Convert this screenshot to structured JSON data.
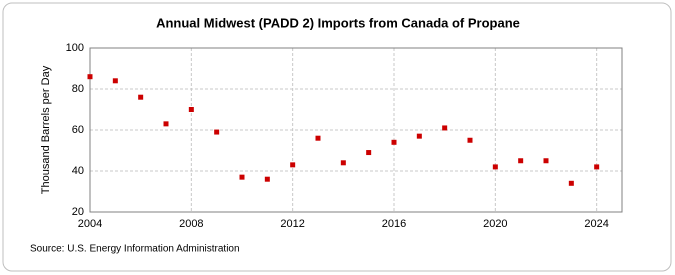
{
  "chart_data": {
    "type": "scatter",
    "title": "Annual Midwest (PADD 2) Imports from Canada of Propane",
    "y_label": "Thousand Barrels per Day",
    "source": "Source: U.S. Energy Information Administration",
    "x": [
      2004,
      2005,
      2006,
      2007,
      2008,
      2009,
      2010,
      2011,
      2012,
      2013,
      2014,
      2015,
      2016,
      2017,
      2018,
      2019,
      2020,
      2021,
      2022,
      2023,
      2024
    ],
    "values": [
      86,
      84,
      76,
      63,
      70,
      59,
      37,
      36,
      43,
      56,
      44,
      49,
      54,
      57,
      61,
      55,
      42,
      45,
      45,
      34,
      42
    ],
    "color": "#cc0000",
    "xlim": [
      2004,
      2025
    ],
    "xticks": [
      2004,
      2008,
      2012,
      2016,
      2020,
      2024
    ],
    "ylim": [
      20,
      100
    ],
    "yticks": [
      20,
      40,
      60,
      80,
      100
    ],
    "grid": true
  }
}
